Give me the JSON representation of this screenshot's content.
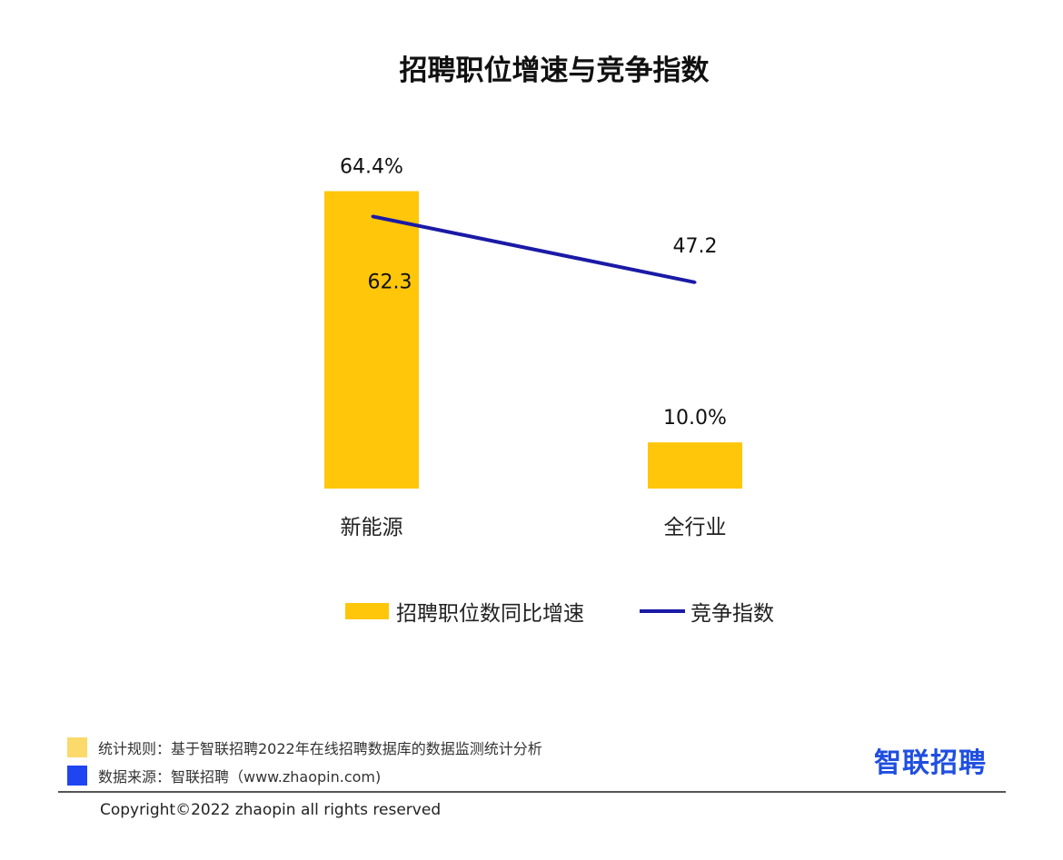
{
  "chart_data": {
    "type": "bar",
    "title": "招聘职位增速与竞争指数",
    "categories": [
      "新能源",
      "全行业"
    ],
    "series": [
      {
        "name": "招聘职位数同比增速",
        "kind": "bar",
        "axis": "primary",
        "values": [
          64.4,
          10.0
        ],
        "labels": [
          "64.4%",
          "10.0%"
        ],
        "color": "#FFC60A"
      },
      {
        "name": "竞争指数",
        "kind": "line",
        "axis": "secondary",
        "values": [
          62.3,
          47.2
        ],
        "labels": [
          "62.3",
          "47.2"
        ],
        "color": "#1A1AA6"
      }
    ],
    "ylim": [
      0,
      70
    ],
    "y2lim": [
      0,
      74
    ],
    "grid": false,
    "legend_position": "bottom"
  },
  "footer": {
    "rule_label": "统计规则：基于智联招聘2022年在线招聘数据库的数据监测统计分析",
    "source_label": "数据来源：智联招聘（www.zhaopin.com)",
    "rule_color": "#FBD96A",
    "source_color": "#1F45F0",
    "copyright": "Copyright©2022 zhaopin all rights reserved",
    "logo": "智联招聘"
  }
}
